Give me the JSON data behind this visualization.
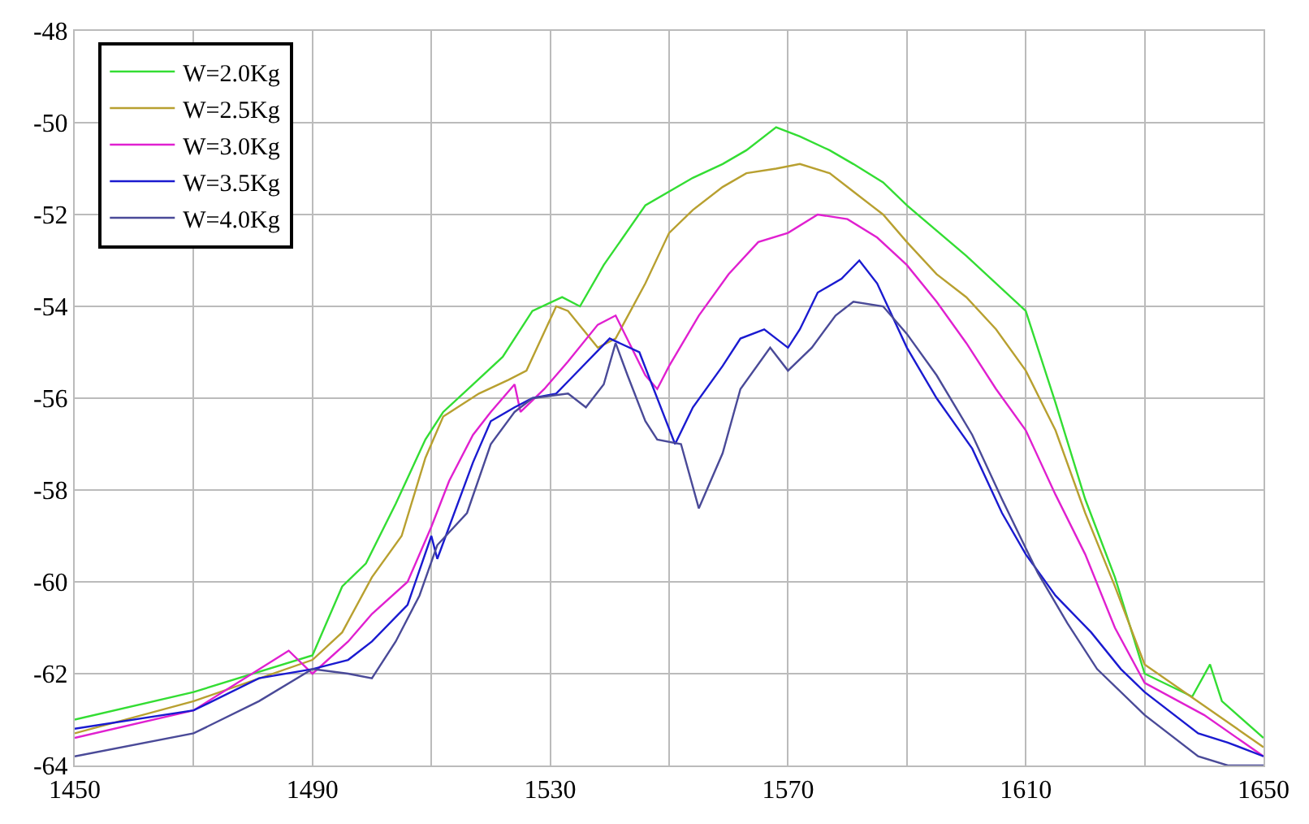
{
  "chart_data": {
    "type": "line",
    "xlim": [
      1450,
      1650
    ],
    "xticks": [
      1450,
      {
        "value": 1470,
        "label": null
      },
      1490,
      {
        "value": 1510,
        "label": null
      },
      1530,
      {
        "value": 1550,
        "label": null
      },
      1570,
      {
        "value": 1590,
        "label": null
      },
      1610,
      {
        "value": 1630,
        "label": null
      },
      1650
    ],
    "ylim": [
      -64,
      -48
    ],
    "yticks": [
      -64,
      -62,
      -60,
      -58,
      -56,
      -54,
      -52,
      -50,
      -48
    ],
    "grid": true,
    "legend": "top left",
    "marker": "none",
    "line_style": "solid",
    "series": [
      {
        "name": "W=2.0Kg",
        "color": "#33dd33",
        "x": [
          1450,
          1470,
          1490,
          1495,
          1499,
          1504,
          1509,
          1512,
          1517,
          1522,
          1527,
          1532,
          1535,
          1539,
          1546,
          1554,
          1559,
          1563,
          1568,
          1572,
          1577,
          1581,
          1586,
          1590,
          1600,
          1610,
          1615,
          1620,
          1625,
          1630,
          1638,
          1641,
          1643,
          1650
        ],
        "values": [
          -63.0,
          -62.4,
          -61.6,
          -60.1,
          -59.6,
          -58.3,
          -56.9,
          -56.3,
          -55.7,
          -55.1,
          -54.1,
          -53.8,
          -54.0,
          -53.1,
          -51.8,
          -51.2,
          -50.9,
          -50.6,
          -50.1,
          -50.3,
          -50.6,
          -50.9,
          -51.3,
          -51.8,
          -52.9,
          -54.1,
          -56.1,
          -58.2,
          -59.9,
          -62.0,
          -62.5,
          -61.8,
          -62.6,
          -63.4
        ]
      },
      {
        "name": "W=2.5Kg",
        "color": "#b8a030",
        "x": [
          1450,
          1470,
          1490,
          1495,
          1500,
          1505,
          1509,
          1512,
          1518,
          1523,
          1526,
          1531,
          1533,
          1538,
          1541,
          1546,
          1550,
          1554,
          1559,
          1563,
          1568,
          1572,
          1577,
          1581,
          1586,
          1590,
          1595,
          1600,
          1605,
          1610,
          1615,
          1620,
          1625,
          1630,
          1640,
          1650
        ],
        "values": [
          -63.3,
          -62.6,
          -61.7,
          -61.1,
          -59.9,
          -59.0,
          -57.3,
          -56.4,
          -55.9,
          -55.6,
          -55.4,
          -54.0,
          -54.1,
          -54.9,
          -54.7,
          -53.5,
          -52.4,
          -51.9,
          -51.4,
          -51.1,
          -51.0,
          -50.9,
          -51.1,
          -51.5,
          -52.0,
          -52.6,
          -53.3,
          -53.8,
          -54.5,
          -55.4,
          -56.7,
          -58.5,
          -60.1,
          -61.8,
          -62.7,
          -63.6
        ]
      },
      {
        "name": "W=3.0Kg",
        "color": "#e020d0",
        "x": [
          1450,
          1470,
          1486,
          1490,
          1496,
          1500,
          1506,
          1510,
          1513,
          1517,
          1520,
          1524,
          1525,
          1529,
          1533,
          1538,
          1541,
          1546,
          1548,
          1550,
          1555,
          1560,
          1565,
          1570,
          1575,
          1580,
          1585,
          1590,
          1595,
          1600,
          1605,
          1610,
          1615,
          1620,
          1625,
          1630,
          1640,
          1650
        ],
        "values": [
          -63.4,
          -62.8,
          -61.5,
          -62.0,
          -61.3,
          -60.7,
          -60.0,
          -58.8,
          -57.8,
          -56.8,
          -56.3,
          -55.7,
          -56.3,
          -55.8,
          -55.2,
          -54.4,
          -54.2,
          -55.5,
          -55.8,
          -55.3,
          -54.2,
          -53.3,
          -52.6,
          -52.4,
          -52.0,
          -52.1,
          -52.5,
          -53.1,
          -53.9,
          -54.8,
          -55.8,
          -56.7,
          -58.1,
          -59.4,
          -61.0,
          -62.2,
          -62.9,
          -63.8
        ]
      },
      {
        "name": "W=3.5Kg",
        "color": "#1a1ad0",
        "x": [
          1450,
          1470,
          1481,
          1490,
          1496,
          1500,
          1506,
          1510,
          1511,
          1517,
          1520,
          1524,
          1527,
          1531,
          1534,
          1540,
          1545,
          1551,
          1554,
          1559,
          1562,
          1566,
          1570,
          1572,
          1575,
          1579,
          1582,
          1585,
          1590,
          1595,
          1601,
          1606,
          1610,
          1615,
          1621,
          1626,
          1630,
          1639,
          1644,
          1650
        ],
        "values": [
          -63.2,
          -62.8,
          -62.1,
          -61.9,
          -61.7,
          -61.3,
          -60.5,
          -59.0,
          -59.5,
          -57.4,
          -56.5,
          -56.2,
          -56.0,
          -55.9,
          -55.5,
          -54.7,
          -55.0,
          -57.0,
          -56.2,
          -55.3,
          -54.7,
          -54.5,
          -54.9,
          -54.5,
          -53.7,
          -53.4,
          -53.0,
          -53.5,
          -54.9,
          -56.0,
          -57.1,
          -58.5,
          -59.4,
          -60.3,
          -61.1,
          -61.9,
          -62.4,
          -63.3,
          -63.5,
          -63.8
        ]
      },
      {
        "name": "W=4.0Kg",
        "color": "#4a4a98",
        "x": [
          1450,
          1470,
          1481,
          1490,
          1496,
          1500,
          1504,
          1508,
          1511,
          1516,
          1520,
          1524,
          1527,
          1533,
          1536,
          1539,
          1541,
          1543,
          1546,
          1548,
          1552,
          1555,
          1559,
          1562,
          1567,
          1570,
          1574,
          1578,
          1581,
          1586,
          1590,
          1595,
          1601,
          1606,
          1612,
          1617,
          1622,
          1630,
          1639,
          1644,
          1650
        ],
        "values": [
          -63.8,
          -63.3,
          -62.6,
          -61.9,
          -62.0,
          -62.1,
          -61.3,
          -60.3,
          -59.2,
          -58.5,
          -57.0,
          -56.3,
          -56.0,
          -55.9,
          -56.2,
          -55.7,
          -54.8,
          -55.5,
          -56.5,
          -56.9,
          -57.0,
          -58.4,
          -57.2,
          -55.8,
          -54.9,
          -55.4,
          -54.9,
          -54.2,
          -53.9,
          -54.0,
          -54.6,
          -55.5,
          -56.8,
          -58.2,
          -59.8,
          -60.9,
          -61.9,
          -62.9,
          -63.8,
          -64.0,
          -64.0
        ]
      }
    ]
  }
}
